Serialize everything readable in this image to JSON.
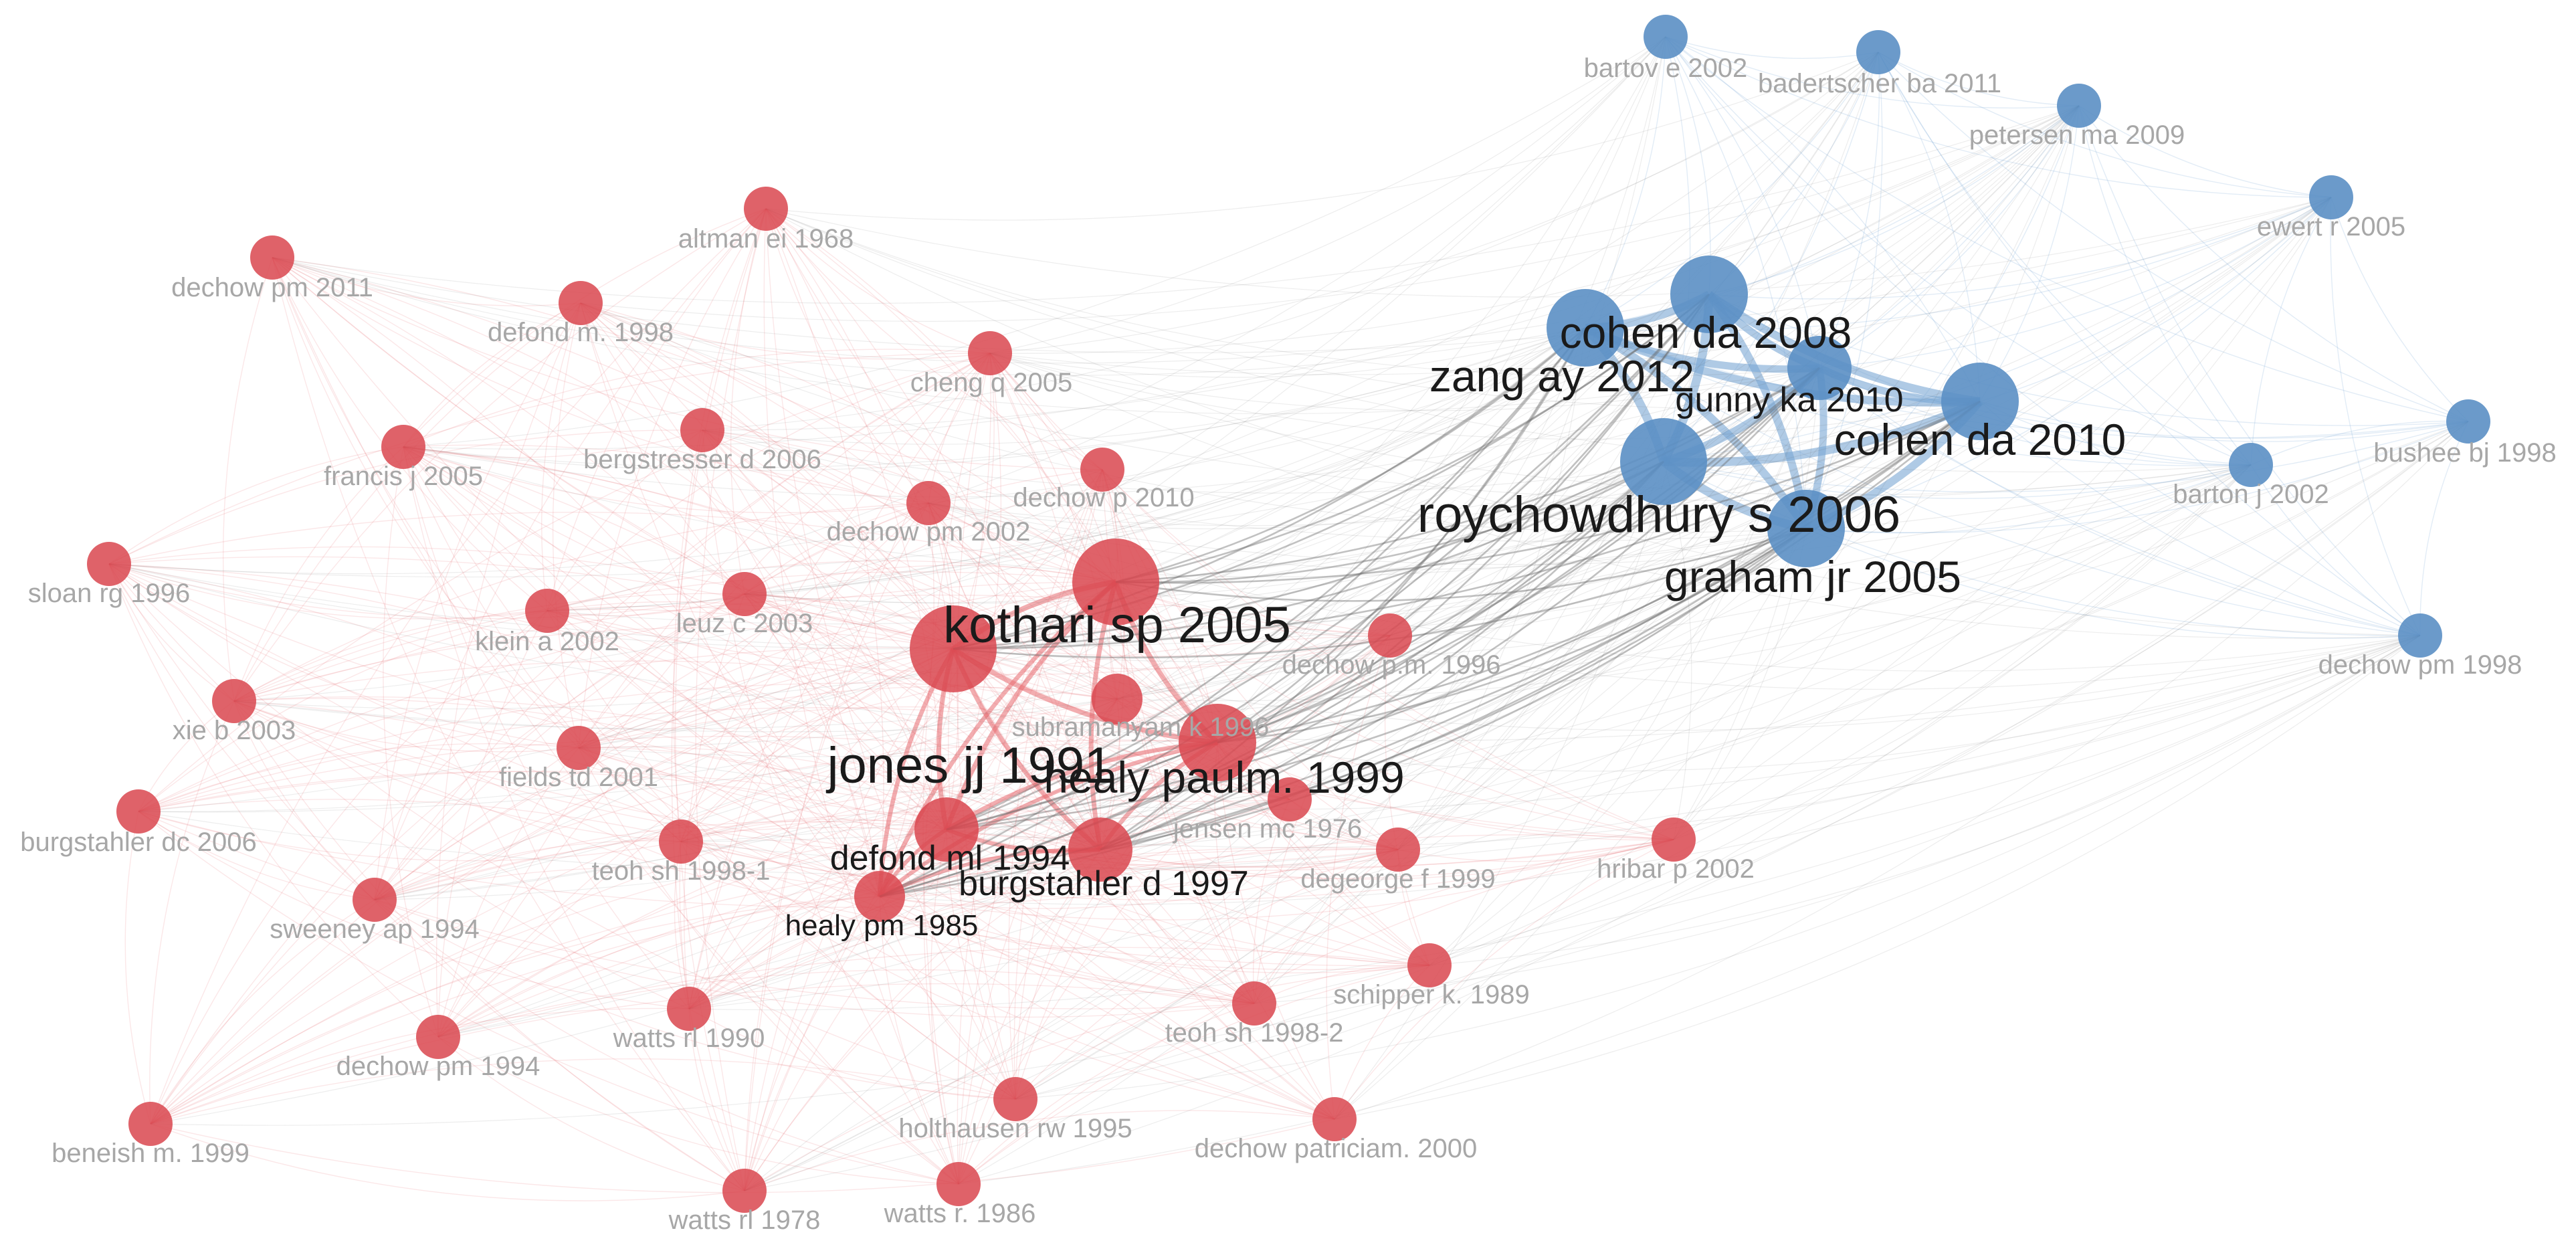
{
  "clusters": {
    "red": {
      "node_color": "#d9474f",
      "edge_color": "#e86a70"
    },
    "blue": {
      "node_color": "#5b8fc4",
      "edge_color": "#7aa7d4"
    },
    "cross_edge_color": "#6b6b6b"
  },
  "nodes": [
    {
      "id": "roychowdhury_2006",
      "label": "roychowdhury s 2006",
      "cluster": "blue",
      "weight": 5,
      "major": true
    },
    {
      "id": "graham_2005",
      "label": "graham jr 2005",
      "cluster": "blue",
      "weight": 4,
      "major": true
    },
    {
      "id": "cohen_2008",
      "label": "cohen da 2008",
      "cluster": "blue",
      "weight": 4,
      "major": true
    },
    {
      "id": "zang_2012",
      "label": "zang ay 2012",
      "cluster": "blue",
      "weight": 4,
      "major": true
    },
    {
      "id": "gunny_2010",
      "label": "gunny ka 2010",
      "cluster": "blue",
      "weight": 3,
      "major": true
    },
    {
      "id": "cohen_2010",
      "label": "cohen da 2010",
      "cluster": "blue",
      "weight": 4,
      "major": true
    },
    {
      "id": "bartov_2002",
      "label": "bartov e 2002",
      "cluster": "blue",
      "weight": 1,
      "major": false
    },
    {
      "id": "badertscher_2011",
      "label": "badertscher ba 2011",
      "cluster": "blue",
      "weight": 1,
      "major": false
    },
    {
      "id": "petersen_2009",
      "label": "petersen ma 2009",
      "cluster": "blue",
      "weight": 1,
      "major": false
    },
    {
      "id": "ewert_2005",
      "label": "ewert r 2005",
      "cluster": "blue",
      "weight": 1,
      "major": false
    },
    {
      "id": "bushee_1998",
      "label": "bushee bj 1998",
      "cluster": "blue",
      "weight": 1,
      "major": false
    },
    {
      "id": "barton_2002",
      "label": "barton j 2002",
      "cluster": "blue",
      "weight": 1,
      "major": false
    },
    {
      "id": "dechow_1998",
      "label": "dechow pm 1998",
      "cluster": "blue",
      "weight": 1,
      "major": false
    },
    {
      "id": "kothari_2005",
      "label": "kothari sp 2005",
      "cluster": "red",
      "weight": 5,
      "major": true
    },
    {
      "id": "jones_1991",
      "label": "jones jj 1991",
      "cluster": "red",
      "weight": 5,
      "major": true
    },
    {
      "id": "healy_1999",
      "label": "healy paulm. 1999",
      "cluster": "red",
      "weight": 4,
      "major": true
    },
    {
      "id": "defond_1994",
      "label": "defond ml 1994",
      "cluster": "red",
      "weight": 3,
      "major": true
    },
    {
      "id": "burgstahler_1997",
      "label": "burgstahler d 1997",
      "cluster": "red",
      "weight": 3,
      "major": true
    },
    {
      "id": "healy_1985",
      "label": "healy pm 1985",
      "cluster": "red",
      "weight": 2,
      "major": true
    },
    {
      "id": "subramanyam_1996",
      "label": "subramanyam k 1996",
      "cluster": "red",
      "weight": 2,
      "major": false
    },
    {
      "id": "altman_1968",
      "label": "altman ei 1968",
      "cluster": "red",
      "weight": 1,
      "major": false
    },
    {
      "id": "dechow_2011",
      "label": "dechow pm 2011",
      "cluster": "red",
      "weight": 1,
      "major": false
    },
    {
      "id": "defond_1998",
      "label": "defond m. 1998",
      "cluster": "red",
      "weight": 1,
      "major": false
    },
    {
      "id": "cheng_2005",
      "label": "cheng q 2005",
      "cluster": "red",
      "weight": 1,
      "major": false
    },
    {
      "id": "francis_2005",
      "label": "francis j 2005",
      "cluster": "red",
      "weight": 1,
      "major": false
    },
    {
      "id": "bergstresser_2006",
      "label": "bergstresser d 2006",
      "cluster": "red",
      "weight": 1,
      "major": false
    },
    {
      "id": "dechow_2010",
      "label": "dechow p 2010",
      "cluster": "red",
      "weight": 1,
      "major": false
    },
    {
      "id": "dechow_2002",
      "label": "dechow pm 2002",
      "cluster": "red",
      "weight": 1,
      "major": false
    },
    {
      "id": "sloan_1996",
      "label": "sloan rg 1996",
      "cluster": "red",
      "weight": 1,
      "major": false
    },
    {
      "id": "klein_2002",
      "label": "klein a 2002",
      "cluster": "red",
      "weight": 1,
      "major": false
    },
    {
      "id": "leuz_2003",
      "label": "leuz c 2003",
      "cluster": "red",
      "weight": 1,
      "major": false
    },
    {
      "id": "dechow_1996",
      "label": "dechow p.m. 1996",
      "cluster": "red",
      "weight": 1,
      "major": false
    },
    {
      "id": "xie_2003",
      "label": "xie b 2003",
      "cluster": "red",
      "weight": 1,
      "major": false
    },
    {
      "id": "fields_2001",
      "label": "fields td 2001",
      "cluster": "red",
      "weight": 1,
      "major": false
    },
    {
      "id": "jensen_1976",
      "label": "jensen mc 1976",
      "cluster": "red",
      "weight": 1,
      "major": false
    },
    {
      "id": "burgstahler_2006",
      "label": "burgstahler dc 2006",
      "cluster": "red",
      "weight": 1,
      "major": false
    },
    {
      "id": "teoh_1998_1",
      "label": "teoh sh 1998-1",
      "cluster": "red",
      "weight": 1,
      "major": false
    },
    {
      "id": "degeorge_1999",
      "label": "degeorge f 1999",
      "cluster": "red",
      "weight": 1,
      "major": false
    },
    {
      "id": "hribar_2002",
      "label": "hribar p 2002",
      "cluster": "red",
      "weight": 1,
      "major": false
    },
    {
      "id": "sweeney_1994",
      "label": "sweeney ap 1994",
      "cluster": "red",
      "weight": 1,
      "major": false
    },
    {
      "id": "schipper_1989",
      "label": "schipper k. 1989",
      "cluster": "red",
      "weight": 1,
      "major": false
    },
    {
      "id": "watts_1990",
      "label": "watts rl 1990",
      "cluster": "red",
      "weight": 1,
      "major": false
    },
    {
      "id": "teoh_1998_2",
      "label": "teoh sh 1998-2",
      "cluster": "red",
      "weight": 1,
      "major": false
    },
    {
      "id": "dechow_1994",
      "label": "dechow pm 1994",
      "cluster": "red",
      "weight": 1,
      "major": false
    },
    {
      "id": "holthausen_1995",
      "label": "holthausen rw 1995",
      "cluster": "red",
      "weight": 1,
      "major": false
    },
    {
      "id": "beneish_1999",
      "label": "beneish m. 1999",
      "cluster": "red",
      "weight": 1,
      "major": false
    },
    {
      "id": "dechow_2000",
      "label": "dechow patriciam. 2000",
      "cluster": "red",
      "weight": 1,
      "major": false
    },
    {
      "id": "watts_1978",
      "label": "watts rl 1978",
      "cluster": "red",
      "weight": 1,
      "major": false
    },
    {
      "id": "watts_1986",
      "label": "watts r. 1986",
      "cluster": "red",
      "weight": 1,
      "major": false
    }
  ]
}
